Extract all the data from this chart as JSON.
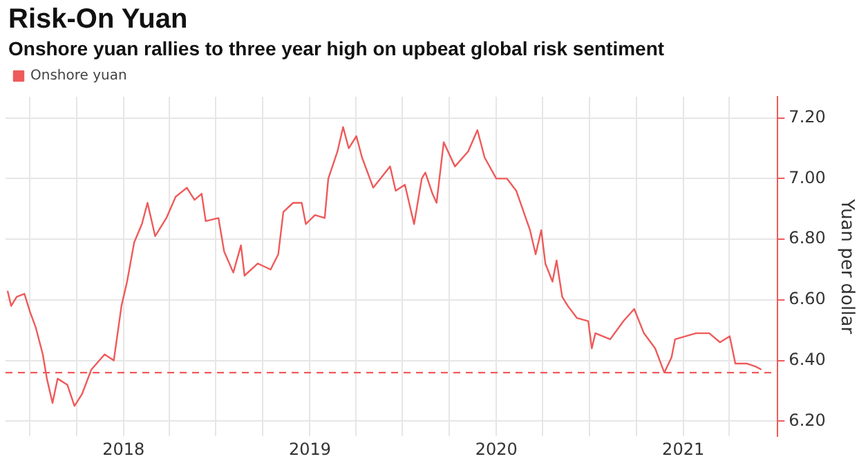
{
  "chart_data": {
    "type": "line",
    "title": "Risk-On Yuan",
    "subtitle": "Onshore yuan rallies to three year high on upbeat global risk sentiment",
    "ylabel": "Yuan per dollar",
    "x": [
      "2017-05-19",
      "2017-05-26",
      "2017-06-06",
      "2017-06-21",
      "2017-07-02",
      "2017-07-13",
      "2017-07-27",
      "2017-08-04",
      "2017-08-15",
      "2017-08-25",
      "2017-09-13",
      "2017-09-27",
      "2017-10-12",
      "2017-10-30",
      "2017-11-25",
      "2017-12-13",
      "2017-12-28",
      "2018-01-08",
      "2018-01-22",
      "2018-02-06",
      "2018-02-17",
      "2018-03-04",
      "2018-03-26",
      "2018-04-13",
      "2018-05-05",
      "2018-05-20",
      "2018-06-03",
      "2018-06-11",
      "2018-07-06",
      "2018-07-17",
      "2018-08-04",
      "2018-08-19",
      "2018-08-26",
      "2018-09-21",
      "2018-10-16",
      "2018-10-31",
      "2018-11-10",
      "2018-11-29",
      "2018-12-16",
      "2018-12-24",
      "2019-01-11",
      "2019-01-30",
      "2019-02-06",
      "2019-02-24",
      "2019-03-07",
      "2019-03-18",
      "2019-04-02",
      "2019-04-13",
      "2019-05-05",
      "2019-06-07",
      "2019-06-18",
      "2019-07-06",
      "2019-07-24",
      "2019-08-08",
      "2019-08-15",
      "2019-08-29",
      "2019-09-06",
      "2019-09-20",
      "2019-10-12",
      "2019-11-07",
      "2019-11-25",
      "2019-12-09",
      "2020-01-01",
      "2020-01-22",
      "2020-02-09",
      "2020-03-07",
      "2020-03-18",
      "2020-03-29",
      "2020-04-06",
      "2020-04-20",
      "2020-04-28",
      "2020-05-09",
      "2020-05-20",
      "2020-06-07",
      "2020-06-29",
      "2020-07-06",
      "2020-07-13",
      "2020-08-11",
      "2020-09-06",
      "2020-09-27",
      "2020-10-16",
      "2020-11-07",
      "2020-11-25",
      "2020-12-09",
      "2020-12-16",
      "2021-01-26",
      "2021-02-21",
      "2021-03-14",
      "2021-04-02",
      "2021-04-13",
      "2021-05-05",
      "2021-05-23",
      "2021-06-03"
    ],
    "series": [
      {
        "name": "Onshore yuan",
        "color": "#ef5a5a",
        "values": [
          6.63,
          6.58,
          6.61,
          6.62,
          6.56,
          6.51,
          6.42,
          6.34,
          6.26,
          6.34,
          6.32,
          6.25,
          6.29,
          6.37,
          6.42,
          6.4,
          6.58,
          6.66,
          6.79,
          6.85,
          6.92,
          6.81,
          6.87,
          6.94,
          6.97,
          6.93,
          6.95,
          6.86,
          6.87,
          6.76,
          6.69,
          6.78,
          6.68,
          6.72,
          6.7,
          6.75,
          6.89,
          6.92,
          6.92,
          6.85,
          6.88,
          6.87,
          7.0,
          7.09,
          7.17,
          7.1,
          7.14,
          7.07,
          6.97,
          7.04,
          6.96,
          6.98,
          6.85,
          7.0,
          7.02,
          6.95,
          6.92,
          7.12,
          7.04,
          7.09,
          7.16,
          7.07,
          7.0,
          7.0,
          6.96,
          6.83,
          6.75,
          6.83,
          6.72,
          6.66,
          6.73,
          6.61,
          6.58,
          6.54,
          6.53,
          6.44,
          6.49,
          6.47,
          6.53,
          6.57,
          6.49,
          6.44,
          6.36,
          6.41,
          6.47,
          6.49,
          6.49,
          6.46,
          6.48,
          6.39,
          6.39,
          6.38,
          6.37
        ]
      }
    ],
    "xlim": [
      "2017-05-15",
      "2021-07-05"
    ],
    "xticks": [
      {
        "value": "2017-07-01",
        "label": null
      },
      {
        "value": "2017-10-01",
        "label": null
      },
      {
        "value": "2018-01-01",
        "label": "2018"
      },
      {
        "value": "2018-04-01",
        "label": null
      },
      {
        "value": "2018-07-01",
        "label": null
      },
      {
        "value": "2018-10-01",
        "label": null
      },
      {
        "value": "2019-01-01",
        "label": "2019"
      },
      {
        "value": "2019-04-01",
        "label": null
      },
      {
        "value": "2019-07-01",
        "label": null
      },
      {
        "value": "2019-10-01",
        "label": null
      },
      {
        "value": "2020-01-01",
        "label": "2020"
      },
      {
        "value": "2020-04-01",
        "label": null
      },
      {
        "value": "2020-07-01",
        "label": null
      },
      {
        "value": "2020-10-01",
        "label": null
      },
      {
        "value": "2021-01-01",
        "label": "2021"
      },
      {
        "value": "2021-04-01",
        "label": null
      }
    ],
    "ylim": [
      6.15,
      7.27
    ],
    "yticks": [
      {
        "value": 6.2,
        "label": "6.20"
      },
      {
        "value": 6.4,
        "label": "6.40"
      },
      {
        "value": 6.6,
        "label": "6.60"
      },
      {
        "value": 6.8,
        "label": "6.80"
      },
      {
        "value": 7.0,
        "label": "7.00"
      },
      {
        "value": 7.2,
        "label": "7.20"
      }
    ],
    "ref_lines": [
      {
        "axis": "y",
        "value": 6.36,
        "color": "#ef5a5a",
        "line_style": "dashed"
      }
    ],
    "grid": true,
    "legend": "top left"
  }
}
